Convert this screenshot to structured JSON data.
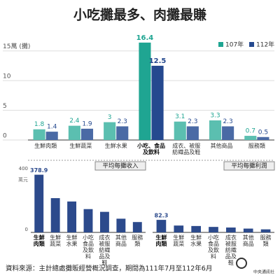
{
  "chart_data": [
    {
      "type": "bar",
      "title": "小吃攤最多、肉攤最賺",
      "categories": [
        "生鮮肉類",
        "生鮮蔬菜",
        "生鮮水果",
        "小吃、食品及飲料",
        "成衣、被服紡織品及鞋",
        "其他商品",
        "服務類"
      ],
      "series": [
        {
          "name": "107年",
          "color": "#5bbfb0",
          "highlight_color": "#1fa592",
          "values": [
            1.8,
            2.4,
            3.0,
            16.4,
            3.1,
            3.3,
            0.7
          ]
        },
        {
          "name": "112年",
          "color": "#4a6aa5",
          "highlight_color": "#25498f",
          "values": [
            1.4,
            1.9,
            2.3,
            12.5,
            2.3,
            2.3,
            0.5
          ]
        }
      ],
      "highlight": 3,
      "ylim": [
        0,
        16.5
      ],
      "yticks": [
        0,
        5,
        10,
        {
          "value": 15,
          "label": "15萬 (攤)"
        }
      ],
      "grid": true,
      "legend": "top-right"
    },
    {
      "type": "bar",
      "title": "平均每攤收入",
      "ylabel": "萬元",
      "categories": [
        "生鮮肉類",
        "生鮮蔬菜",
        "生鮮水果",
        "小吃食品及飲料",
        "成衣被服紡織品及鞋",
        "其他商品",
        "服務類"
      ],
      "values": [
        378.9,
        225,
        203,
        153,
        135,
        90,
        68
      ],
      "value_labels": [
        "378.9",
        null,
        null,
        null,
        null,
        null,
        null
      ],
      "color": "#2c4a8c",
      "ylim": [
        0,
        400
      ],
      "yticks": [
        0,
        400
      ],
      "highlight": 0
    },
    {
      "type": "bar",
      "title": "平均每攤利潤",
      "categories": [
        "生鮮肉類",
        "生鮮蔬菜",
        "生鮮水果",
        "小吃食品及飲料",
        "成衣被服紡織品及鞋",
        "其他商品",
        "服務類"
      ],
      "values": [
        82.3,
        45,
        42,
        36,
        32,
        25,
        20
      ],
      "value_labels": [
        "82.3",
        null,
        null,
        null,
        null,
        null,
        null
      ],
      "color": "#2c4a8c",
      "ylim": [
        0,
        400
      ],
      "yticks": [],
      "highlight": 0
    }
  ],
  "source": "資料來源：主計總處攤販經營概況調查，期間為111年7月至112年6月",
  "credit": "中央通訊社"
}
